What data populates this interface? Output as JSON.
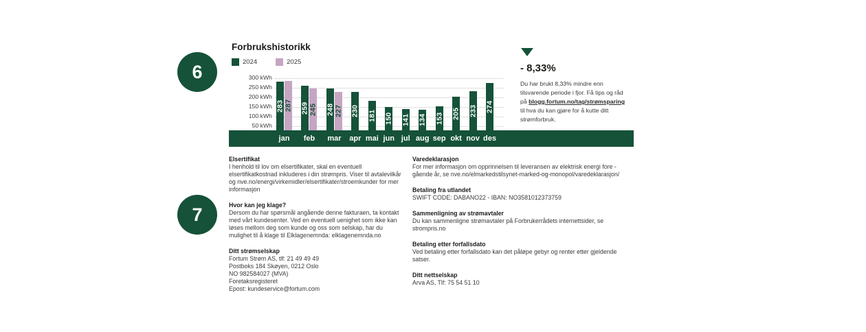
{
  "colors": {
    "green": "#155239",
    "pink": "#c6a5c3",
    "text_dark": "#1d1d1b",
    "text_body": "#3a3a38",
    "gridline": "#bfbfbf",
    "bar_label_on_green": "#ffffff",
    "bar_label_on_pink": "#155239"
  },
  "step_badges": [
    {
      "label": "6"
    },
    {
      "label": "7"
    }
  ],
  "chart_data": {
    "type": "bar",
    "title": "Forbrukshistorikk",
    "unit": "kWh",
    "categories": [
      "jan",
      "feb",
      "mar",
      "apr",
      "mai",
      "jun",
      "jul",
      "aug",
      "sep",
      "okt",
      "nov",
      "des"
    ],
    "series": [
      {
        "name": "2024",
        "color": "#155239",
        "value_label_color": "#ffffff",
        "values": [
          283,
          259,
          248,
          230,
          181,
          150,
          141,
          134,
          153,
          205,
          233,
          274
        ]
      },
      {
        "name": "2025",
        "color": "#c6a5c3",
        "value_label_color": "#155239",
        "values": [
          287,
          245,
          227,
          null,
          null,
          null,
          null,
          null,
          null,
          null,
          null,
          null
        ]
      }
    ],
    "y_ticks": [
      300,
      250,
      200,
      150,
      100,
      50
    ],
    "y_tick_labels": [
      "300 kWh",
      "250 kWh",
      "200 kWh",
      "150 kWh",
      "100 kWh",
      "50 kWh"
    ],
    "ylim": [
      0,
      300
    ],
    "grid": "horizontal dotted",
    "legend_position": "top-left",
    "value_labels": "rotated vertical inside bars"
  },
  "decrease_indicator": {
    "value": "- 8,33%",
    "description_lines": [
      {
        "text": "Du har brukt 8,33% mindre enn"
      },
      {
        "text": "tilsvarende periode i fjor. Få tips og råd"
      },
      {
        "text": "på ",
        "link": "blogg.fortum.no/tag/strømsparing"
      },
      {
        "text": "til hva du kan gjøre for å kutte ditt"
      },
      {
        "text": "strømforbruk."
      }
    ]
  },
  "info_columns": {
    "left": [
      {
        "title": "Elsertifikat",
        "lines": [
          "I henhold til lov om elsertifikater, skal en eventuell",
          "elsertifikatkostnad inkluderes i din strømpris. Viser til avtalevilkår",
          "og nve.no/energi/virkemidler/elsertifikater/stroemkunder for mer",
          "informasjon"
        ]
      },
      {
        "title": "Hvor kan jeg klage?",
        "lines": [
          "Dersom du har spørsmål angående denne fakturaen, ta kontakt",
          "med vårt kundesenter. Ved en eventuell uenighet som ikke kan",
          "løses mellom deg som kunde og oss som selskap, har du",
          "mulighet til å klage til Elklagenemnda: elklagenemnda.no"
        ]
      },
      {
        "title": "Ditt strømselskap",
        "lines": [
          "Fortum Strøm AS, tlf: 21 49 49 49",
          "Postboks 184 Skøyen, 0212 Oslo",
          "NO 982584027 (MVA)",
          "Foretaksregisteret",
          "Epost: kundeservice@fortum.com"
        ]
      }
    ],
    "right": [
      {
        "title": "Varedeklarasjon",
        "lines": [
          "For mer informasjon om opprinnelsen til leveransen av elektrisk energi fore -",
          "gående år, se nve.no/elmarkedstilsynet-marked-og-monopol/varedeklarasjon/"
        ]
      },
      {
        "title": "Betaling fra utlandet",
        "lines": [
          "SWIFT CODE: DABANO22 - IBAN: NO3581012373759"
        ]
      },
      {
        "title": "Sammenligning av strømavtaler",
        "lines": [
          "Du kan sammenligne strømavtaler på Forbrukerrådets internettsider, se",
          "strompris.no"
        ]
      },
      {
        "title": "Betaling etter forfallsdato",
        "lines": [
          "Ved betaling etter forfallsdato kan det påløpe gebyr og renter etter gjeldende",
          "satser."
        ]
      },
      {
        "title": "Ditt nettselskap",
        "lines": [
          "Arva AS, Tlf: 75 54 51 10"
        ]
      }
    ]
  }
}
